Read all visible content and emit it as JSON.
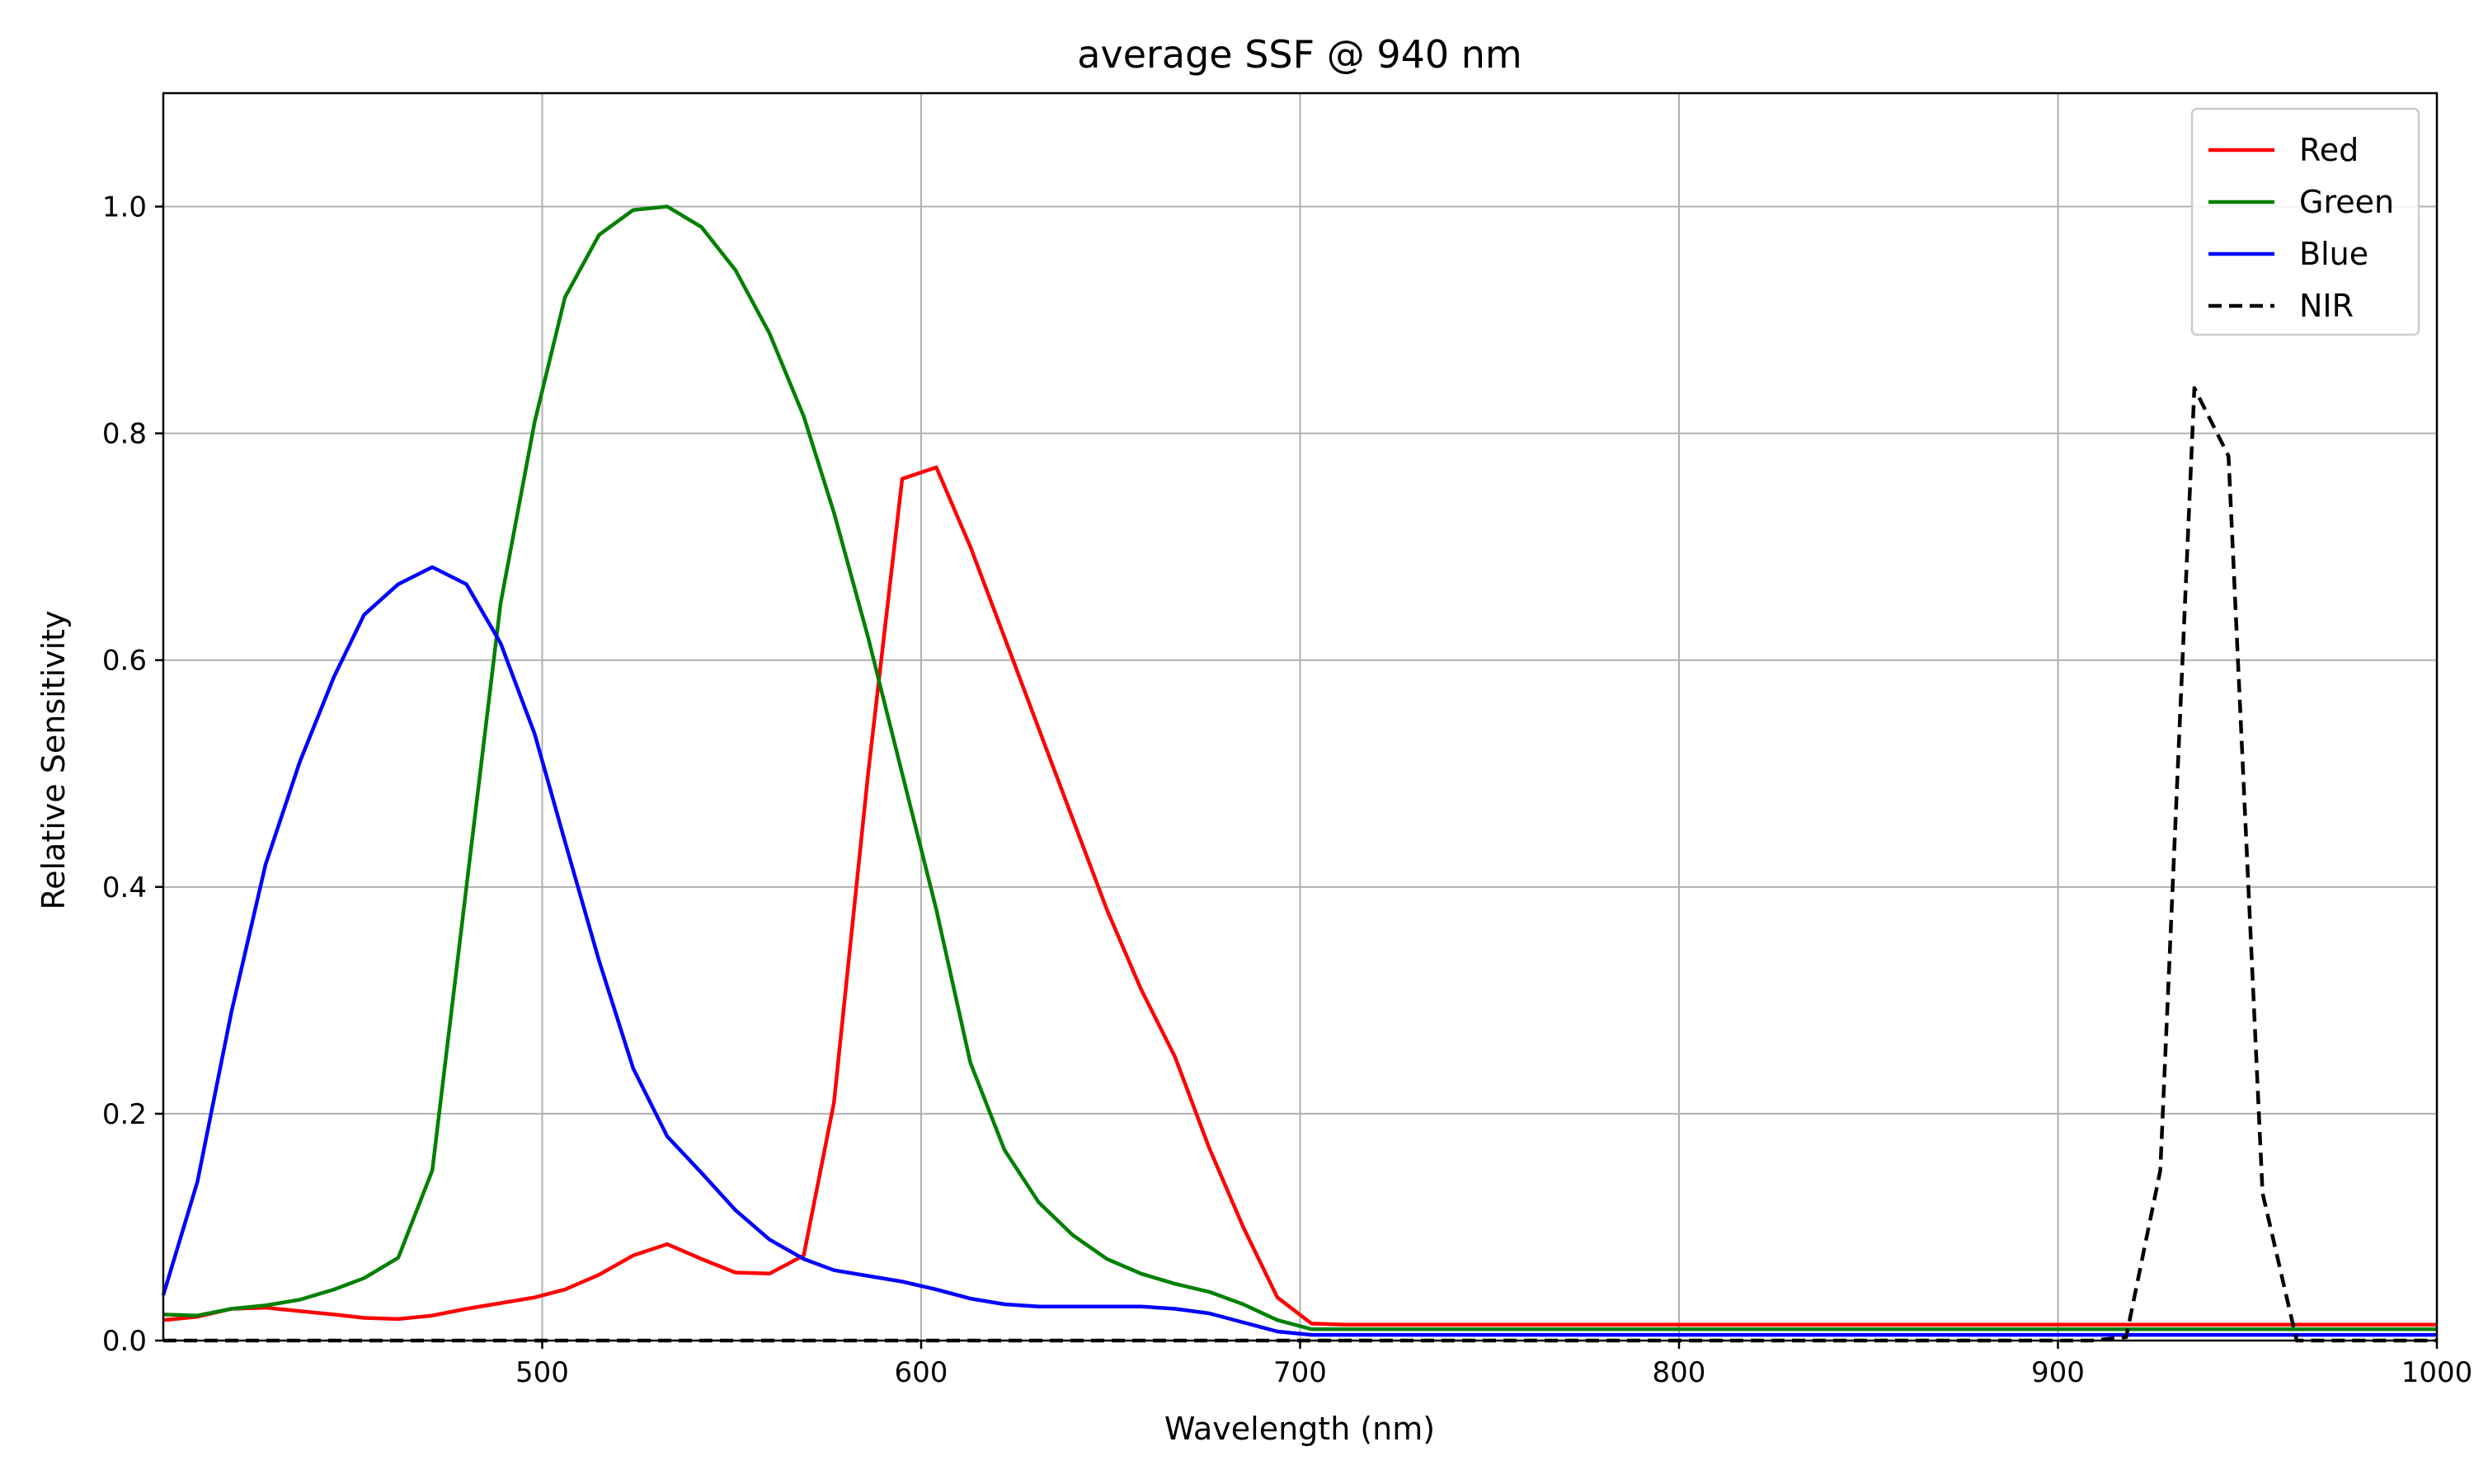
{
  "chart_data": {
    "type": "line",
    "title": "average SSF @ 940 nm",
    "xlabel": "Wavelength (nm)",
    "ylabel": "Relative Sensitivity",
    "xlim": [
      400,
      1000
    ],
    "ylim": [
      0,
      1.1
    ],
    "xticks": [
      500,
      600,
      700,
      800,
      900,
      1000
    ],
    "yticks": [
      0.0,
      0.2,
      0.4,
      0.6,
      0.8,
      1.0
    ],
    "grid": true,
    "legend_position": "top-right",
    "x": [
      400,
      409,
      418,
      427,
      436,
      445,
      453,
      462,
      471,
      480,
      489,
      498,
      506,
      515,
      524,
      533,
      542,
      551,
      560,
      569,
      577,
      586,
      595,
      604,
      613,
      622,
      631,
      640,
      649,
      658,
      667,
      676,
      685,
      694,
      703,
      712,
      721,
      730,
      739,
      748,
      756,
      765,
      774,
      783,
      792,
      801,
      810,
      819,
      828,
      837,
      846,
      855,
      864,
      873,
      882,
      891,
      900,
      909,
      918,
      927,
      936,
      945,
      954,
      963,
      972,
      981,
      990,
      1000
    ],
    "series": [
      {
        "name": "Red",
        "color": "#ff0000",
        "dash": "solid",
        "values": [
          0.018,
          0.021,
          0.028,
          0.029,
          0.026,
          0.023,
          0.02,
          0.019,
          0.022,
          0.028,
          0.033,
          0.038,
          0.045,
          0.058,
          0.075,
          0.085,
          0.072,
          0.06,
          0.059,
          0.075,
          0.21,
          0.5,
          0.76,
          0.77,
          0.7,
          0.62,
          0.54,
          0.46,
          0.38,
          0.31,
          0.25,
          0.17,
          0.1,
          0.038,
          0.015,
          0.014,
          0.014,
          0.014,
          0.014,
          0.014,
          0.014,
          0.014,
          0.014,
          0.014,
          0.014,
          0.014,
          0.014,
          0.014,
          0.014,
          0.014,
          0.014,
          0.014,
          0.014,
          0.014,
          0.014,
          0.014,
          0.014,
          0.014,
          0.014,
          0.014,
          0.014,
          0.014,
          0.014,
          0.014,
          0.014,
          0.014,
          0.014,
          0.014
        ]
      },
      {
        "name": "Green",
        "color": "#008000",
        "dash": "solid",
        "values": [
          0.023,
          0.022,
          0.028,
          0.031,
          0.036,
          0.045,
          0.055,
          0.073,
          0.15,
          0.4,
          0.65,
          0.81,
          0.92,
          0.975,
          0.997,
          1.0,
          0.982,
          0.944,
          0.888,
          0.815,
          0.73,
          0.62,
          0.5,
          0.38,
          0.245,
          0.168,
          0.122,
          0.093,
          0.072,
          0.059,
          0.05,
          0.043,
          0.032,
          0.018,
          0.01,
          0.01,
          0.01,
          0.01,
          0.01,
          0.01,
          0.01,
          0.01,
          0.01,
          0.01,
          0.01,
          0.01,
          0.01,
          0.01,
          0.01,
          0.01,
          0.01,
          0.01,
          0.01,
          0.01,
          0.01,
          0.01,
          0.01,
          0.01,
          0.01,
          0.01,
          0.01,
          0.01,
          0.01,
          0.01,
          0.01,
          0.01,
          0.01,
          0.01
        ]
      },
      {
        "name": "Blue",
        "color": "#0000ff",
        "dash": "solid",
        "values": [
          0.04,
          0.14,
          0.29,
          0.42,
          0.51,
          0.585,
          0.64,
          0.667,
          0.682,
          0.667,
          0.615,
          0.535,
          0.44,
          0.335,
          0.24,
          0.18,
          0.148,
          0.115,
          0.089,
          0.072,
          0.062,
          0.057,
          0.052,
          0.045,
          0.037,
          0.032,
          0.03,
          0.03,
          0.03,
          0.03,
          0.028,
          0.024,
          0.016,
          0.008,
          0.005,
          0.005,
          0.005,
          0.005,
          0.005,
          0.005,
          0.005,
          0.005,
          0.005,
          0.005,
          0.005,
          0.005,
          0.005,
          0.005,
          0.005,
          0.005,
          0.005,
          0.005,
          0.005,
          0.005,
          0.005,
          0.005,
          0.005,
          0.005,
          0.005,
          0.005,
          0.005,
          0.005,
          0.005,
          0.005,
          0.005,
          0.005,
          0.005,
          0.005
        ]
      },
      {
        "name": "NIR",
        "color": "#000000",
        "dash": "dashed",
        "values": [
          0,
          0,
          0,
          0,
          0,
          0,
          0,
          0,
          0,
          0,
          0,
          0,
          0,
          0,
          0,
          0,
          0,
          0,
          0,
          0,
          0,
          0,
          0,
          0,
          0,
          0,
          0,
          0,
          0,
          0,
          0,
          0,
          0,
          0,
          0,
          0,
          0,
          0,
          0,
          0,
          0,
          0,
          0,
          0,
          0,
          0,
          0,
          0,
          0,
          0,
          0,
          0,
          0,
          0,
          0,
          0,
          0,
          0,
          0.003,
          0.15,
          0.84,
          0.78,
          0.13,
          0.0,
          0,
          0,
          0,
          0
        ]
      }
    ]
  }
}
